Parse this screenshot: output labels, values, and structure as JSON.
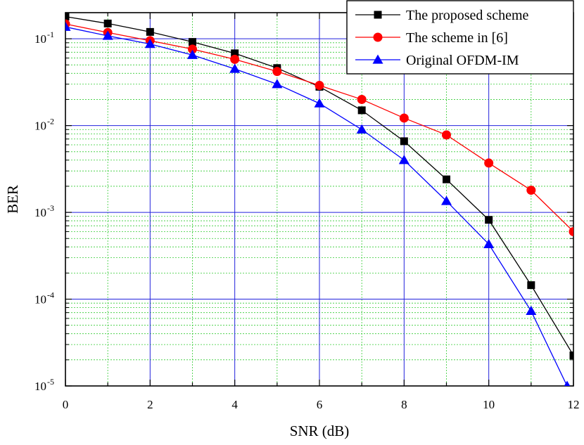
{
  "chart_data": {
    "type": "line",
    "xlabel": "SNR (dB)",
    "ylabel": "BER",
    "xlim": [
      0,
      12
    ],
    "ylim": [
      1e-05,
      0.2
    ],
    "yscale": "log",
    "x_ticks": [
      "0",
      "2",
      "4",
      "6",
      "8",
      "10",
      "12"
    ],
    "y_ticks": [
      {
        "base": "10",
        "exp": "-1",
        "value": 0.1
      },
      {
        "base": "10",
        "exp": "-2",
        "value": 0.01
      },
      {
        "base": "10",
        "exp": "-3",
        "value": 0.001
      },
      {
        "base": "10",
        "exp": "-4",
        "value": 0.0001
      },
      {
        "base": "10",
        "exp": "-5",
        "value": 1e-05
      }
    ],
    "grid": true,
    "legend_position": "top-right",
    "series": [
      {
        "name": "The proposed scheme",
        "color": "#000000",
        "marker": "square",
        "x": [
          0,
          1,
          2,
          3,
          4,
          5,
          6,
          7,
          8,
          9,
          10,
          11,
          12
        ],
        "y": [
          0.18,
          0.15,
          0.12,
          0.092,
          0.068,
          0.046,
          0.028,
          0.015,
          0.0066,
          0.0024,
          0.00082,
          0.000145,
          2.25e-05
        ]
      },
      {
        "name": "The scheme in [6]",
        "color": "#ff0000",
        "marker": "circle",
        "x": [
          0,
          1,
          2,
          3,
          4,
          5,
          6,
          7,
          8,
          9,
          10,
          11,
          12
        ],
        "y": [
          0.148,
          0.118,
          0.095,
          0.076,
          0.058,
          0.042,
          0.029,
          0.02,
          0.0122,
          0.0078,
          0.0037,
          0.0018,
          0.0006
        ]
      },
      {
        "name": "Original OFDM-IM",
        "color": "#0000ff",
        "marker": "triangle",
        "x": [
          0,
          1,
          2,
          3,
          4,
          5,
          6,
          7,
          8,
          9,
          10,
          11,
          11.85
        ],
        "y": [
          0.137,
          0.108,
          0.087,
          0.065,
          0.045,
          0.03,
          0.018,
          0.009,
          0.004,
          0.00135,
          0.00043,
          7.3e-05,
          1e-05
        ]
      }
    ]
  }
}
